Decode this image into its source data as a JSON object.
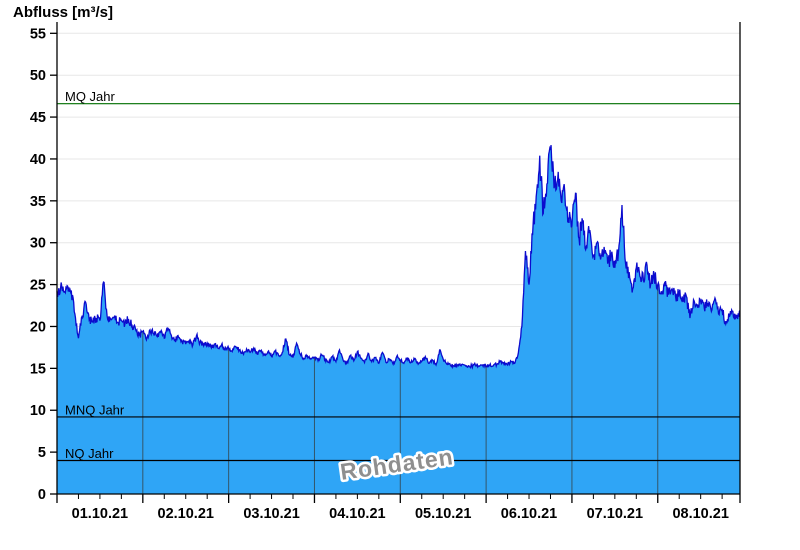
{
  "title": "Abfluss [m³/s]",
  "watermark": "Rohdaten",
  "colors": {
    "background": "#FFFFFF",
    "area_fill": "#2FA5F6",
    "trace_line": "#0B0BCE",
    "day_grid_line": "#33566A",
    "value_grid_line": "#E7E7E7",
    "axis": "#000000",
    "mq_line": "#006F00",
    "mnq_nq_line": "#000000",
    "tick_label": "#000000",
    "watermark_text": "#8F8F8F"
  },
  "chart_data": {
    "type": "area",
    "title": "Abfluss [m³/s]",
    "ylabel": "Abfluss [m³/s]",
    "xlabel": "",
    "ylim": [
      0,
      56.35
    ],
    "ytick_interval": 5,
    "yticks": [
      0,
      5,
      10,
      15,
      20,
      25,
      30,
      35,
      40,
      45,
      50,
      55
    ],
    "grid": true,
    "legend_position": "none",
    "categories": [
      "01.10.21",
      "02.10.21",
      "03.10.21",
      "04.10.21",
      "05.10.21",
      "06.10.21",
      "07.10.21",
      "08.10.21"
    ],
    "x_minor_tick_hours": 6,
    "sampling": "hourly",
    "annotations": [
      {
        "text": "Rohdaten",
        "x": "05.10.21 12:00",
        "y": 3,
        "rotation": -8
      }
    ],
    "reference_lines": [
      {
        "label": "MQ Jahr",
        "value": 46.6,
        "color": "#006F00"
      },
      {
        "label": "MNQ Jahr",
        "value": 9.2,
        "color": "#000000"
      },
      {
        "label": "NQ Jahr",
        "value": 4.0,
        "color": "#000000"
      }
    ],
    "series": [
      {
        "name": "Abfluss Rohdaten",
        "unit": "m³/s",
        "values": [
          24.2,
          24.6,
          24.1,
          24.8,
          24.3,
          21.5,
          18.6,
          21.2,
          22.9,
          20.8,
          20.6,
          21.0,
          20.7,
          25.3,
          21.3,
          20.9,
          21.1,
          20.5,
          20.7,
          20.3,
          20.9,
          20.1,
          19.6,
          18.9,
          19.4,
          18.4,
          19.6,
          19.2,
          18.8,
          19.3,
          18.6,
          19.8,
          18.9,
          18.4,
          18.7,
          18.2,
          17.9,
          18.3,
          17.8,
          18.9,
          18.1,
          17.7,
          18.0,
          17.6,
          17.9,
          17.4,
          17.8,
          17.2,
          17.4,
          17.0,
          17.6,
          17.2,
          16.8,
          17.3,
          16.9,
          17.4,
          16.7,
          17.1,
          16.6,
          17.0,
          16.4,
          17.0,
          16.5,
          16.9,
          18.5,
          16.6,
          16.3,
          18.0,
          16.7,
          16.2,
          16.5,
          16.1,
          16.3,
          15.9,
          16.6,
          16.1,
          15.7,
          16.4,
          15.8,
          17.2,
          16.0,
          15.6,
          16.5,
          15.9,
          17.0,
          16.2,
          15.7,
          16.8,
          15.8,
          16.3,
          15.6,
          16.9,
          15.7,
          16.1,
          15.5,
          16.4,
          16.0,
          15.6,
          16.3,
          15.7,
          16.1,
          15.5,
          15.9,
          16.4,
          15.6,
          16.0,
          15.4,
          17.2,
          16.1,
          15.5,
          15.4,
          15.3,
          15.4,
          15.3,
          15.4,
          15.3,
          15.3,
          15.4,
          15.3,
          15.4,
          15.3,
          15.4,
          15.3,
          15.5,
          15.9,
          15.5,
          15.4,
          15.8,
          15.6,
          16.8,
          20.0,
          29.0,
          25.0,
          31.0,
          35.5,
          40.4,
          33.5,
          37.0,
          41.2,
          36.5,
          37.5,
          35.0,
          36.0,
          33.0,
          32.0,
          35.9,
          30.5,
          32.5,
          29.5,
          31.5,
          28.5,
          30.0,
          28.0,
          29.5,
          27.5,
          28.5,
          27.0,
          28.8,
          34.5,
          27.5,
          26.5,
          24.5,
          27.0,
          26.0,
          25.5,
          27.3,
          25.0,
          26.0,
          25.0,
          24.2,
          24.8,
          23.8,
          24.5,
          23.5,
          24.0,
          23.0,
          23.6,
          21.0,
          23.2,
          22.6,
          23.0,
          22.2,
          22.8,
          21.8,
          23.4,
          21.5,
          22.0,
          20.3,
          21.2,
          21.8,
          21.0,
          21.9
        ]
      }
    ]
  }
}
